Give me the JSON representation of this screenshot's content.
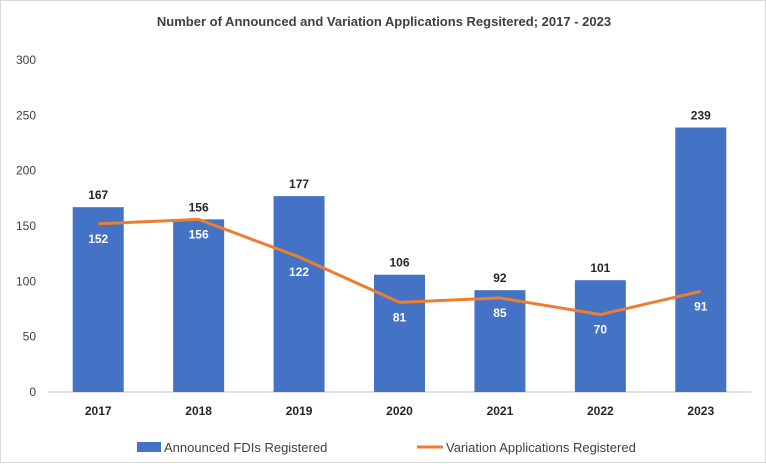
{
  "chart_data": {
    "type": "bar",
    "title": "Number of Announced and Variation Applications Regsitered; 2017 - 2023",
    "categories": [
      "2017",
      "2018",
      "2019",
      "2020",
      "2021",
      "2022",
      "2023"
    ],
    "series": [
      {
        "name": "Announced FDIs Registered",
        "type": "bar",
        "color": "#4472c4",
        "values": [
          167,
          156,
          177,
          106,
          92,
          101,
          239
        ]
      },
      {
        "name": "Variation Applications Registered",
        "type": "line",
        "color": "#ed7d31",
        "values": [
          152,
          156,
          122,
          81,
          85,
          70,
          91
        ]
      }
    ],
    "ylim": [
      0,
      300
    ],
    "yticks": [
      0,
      50,
      100,
      150,
      200,
      250,
      300
    ],
    "grid": false,
    "legend": "bottom"
  }
}
